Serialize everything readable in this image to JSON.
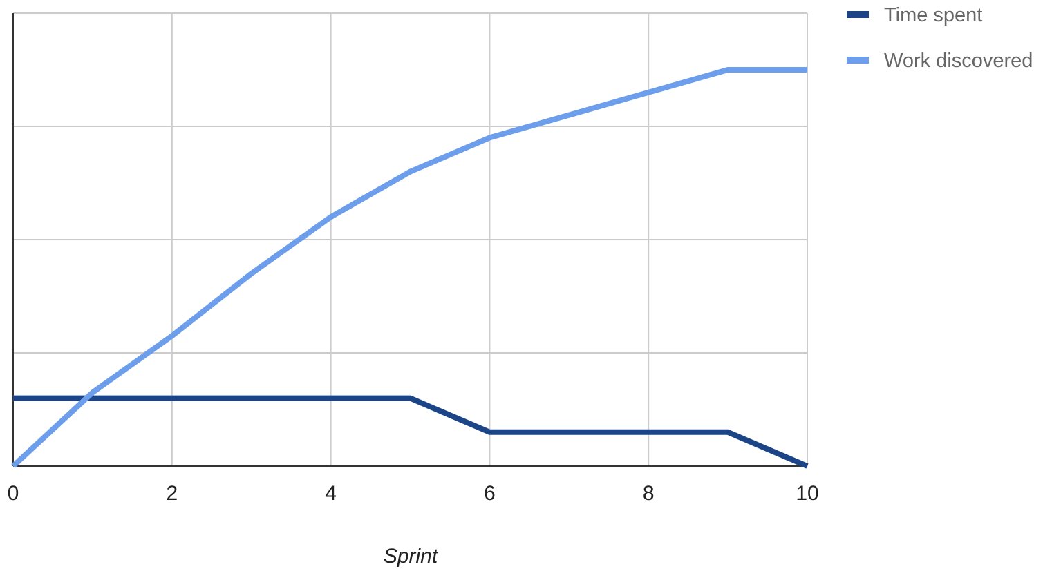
{
  "chart_data": {
    "type": "line",
    "title": "",
    "xlabel": "Sprint",
    "ylabel": "",
    "xlim": [
      0,
      10
    ],
    "ylim": [
      0,
      4
    ],
    "x_ticks": [
      0,
      2,
      4,
      6,
      8,
      10
    ],
    "x_tick_labels": [
      "0",
      "2",
      "4",
      "6",
      "8",
      "10"
    ],
    "y_gridlines": [
      0,
      1,
      2,
      3,
      4
    ],
    "y_tick_labels": [],
    "grid": true,
    "legend_position": "top-right",
    "series": [
      {
        "name": "Time spent",
        "color": "#1c4587",
        "x": [
          0,
          1,
          2,
          3,
          4,
          5,
          6,
          7,
          8,
          9,
          10
        ],
        "values": [
          0.6,
          0.6,
          0.6,
          0.6,
          0.6,
          0.6,
          0.3,
          0.3,
          0.3,
          0.3,
          0
        ]
      },
      {
        "name": "Work discovered",
        "color": "#6d9eeb",
        "x": [
          0,
          1,
          2,
          3,
          4,
          5,
          6,
          7,
          8,
          9,
          10
        ],
        "values": [
          0,
          0.65,
          1.15,
          1.7,
          2.2,
          2.6,
          2.9,
          3.1,
          3.3,
          3.5,
          3.5
        ]
      }
    ]
  }
}
